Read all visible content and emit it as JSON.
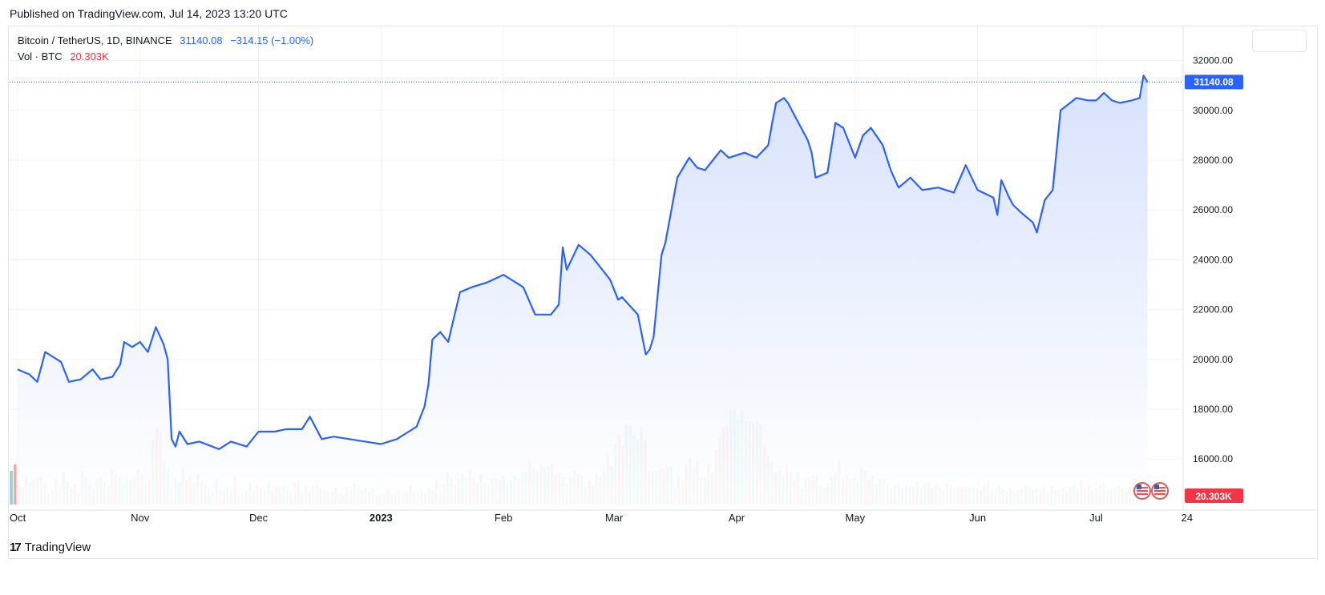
{
  "header": {
    "published": "Published on TradingView.com, Jul 14, 2023 13:20 UTC"
  },
  "legend": {
    "symbol": "Bitcoin / TetherUS, 1D, BINANCE",
    "price": "31140.08",
    "change": "−314.15 (−1.00%)",
    "volume_label": "Vol · BTC",
    "volume_value": "20.303K"
  },
  "footer": {
    "brand": "TradingView",
    "logo": "17"
  },
  "colors": {
    "line": "#2962ff",
    "area_top": "#d6e0fd",
    "area_bottom": "#ffffff",
    "vol_up": "#8fd3c8",
    "vol_down": "#f4a5a5",
    "price_tag": "#2962ff",
    "volume_tag": "#f23645",
    "grid": "#f0f3fa"
  },
  "icons": [
    "us-flag-event-icon",
    "us-flag-event-icon",
    "settings-box",
    "tradingview-logo-icon"
  ],
  "chart_data": {
    "type": "area",
    "title": "Bitcoin / TetherUS, 1D, BINANCE",
    "x_tick_labels": [
      "Oct",
      "Nov",
      "Dec",
      "2023",
      "Feb",
      "Mar",
      "Apr",
      "May",
      "Jun",
      "Jul",
      "24"
    ],
    "y_tick_labels": [
      "32000.00",
      "30000.00",
      "28000.00",
      "26000.00",
      "24000.00",
      "22000.00",
      "20000.00",
      "18000.00",
      "16000.00"
    ],
    "ylim": [
      14200,
      33400
    ],
    "last_price_label": "31140.08",
    "last_volume_label": "20.303K",
    "grid": true,
    "series": [
      {
        "name": "Bitcoin / TetherUS",
        "x": [
          "2022-10-01",
          "2022-10-04",
          "2022-10-06",
          "2022-10-08",
          "2022-10-12",
          "2022-10-14",
          "2022-10-17",
          "2022-10-20",
          "2022-10-22",
          "2022-10-25",
          "2022-10-27",
          "2022-10-28",
          "2022-10-30",
          "2022-11-01",
          "2022-11-03",
          "2022-11-05",
          "2022-11-07",
          "2022-11-08",
          "2022-11-09",
          "2022-11-10",
          "2022-11-11",
          "2022-11-13",
          "2022-11-16",
          "2022-11-21",
          "2022-11-24",
          "2022-11-28",
          "2022-12-01",
          "2022-12-05",
          "2022-12-08",
          "2022-12-12",
          "2022-12-14",
          "2022-12-17",
          "2022-12-20",
          "2022-12-24",
          "2022-12-28",
          "2023-01-01",
          "2023-01-05",
          "2023-01-08",
          "2023-01-10",
          "2023-01-12",
          "2023-01-13",
          "2023-01-14",
          "2023-01-16",
          "2023-01-18",
          "2023-01-21",
          "2023-01-24",
          "2023-01-28",
          "2023-02-01",
          "2023-02-03",
          "2023-02-06",
          "2023-02-09",
          "2023-02-13",
          "2023-02-15",
          "2023-02-16",
          "2023-02-17",
          "2023-02-20",
          "2023-02-23",
          "2023-02-26",
          "2023-02-28",
          "2023-03-02",
          "2023-03-03",
          "2023-03-07",
          "2023-03-09",
          "2023-03-10",
          "2023-03-11",
          "2023-03-13",
          "2023-03-14",
          "2023-03-17",
          "2023-03-20",
          "2023-03-22",
          "2023-03-24",
          "2023-03-28",
          "2023-03-30",
          "2023-04-03",
          "2023-04-06",
          "2023-04-09",
          "2023-04-10",
          "2023-04-11",
          "2023-04-13",
          "2023-04-14",
          "2023-04-17",
          "2023-04-19",
          "2023-04-20",
          "2023-04-21",
          "2023-04-24",
          "2023-04-26",
          "2023-04-28",
          "2023-05-01",
          "2023-05-03",
          "2023-05-05",
          "2023-05-08",
          "2023-05-10",
          "2023-05-12",
          "2023-05-15",
          "2023-05-18",
          "2023-05-22",
          "2023-05-26",
          "2023-05-29",
          "2023-06-01",
          "2023-06-05",
          "2023-06-06",
          "2023-06-07",
          "2023-06-09",
          "2023-06-10",
          "2023-06-12",
          "2023-06-15",
          "2023-06-16",
          "2023-06-18",
          "2023-06-20",
          "2023-06-21",
          "2023-06-22",
          "2023-06-26",
          "2023-06-29",
          "2023-07-01",
          "2023-07-03",
          "2023-07-05",
          "2023-07-07",
          "2023-07-10",
          "2023-07-12",
          "2023-07-13",
          "2023-07-14"
        ],
        "y": [
          19600,
          19400,
          19100,
          20300,
          19900,
          19100,
          19200,
          19600,
          19200,
          19300,
          19800,
          20700,
          20500,
          20700,
          20300,
          21300,
          20600,
          20000,
          16800,
          16500,
          17100,
          16600,
          16700,
          16400,
          16700,
          16500,
          17100,
          17100,
          17200,
          17200,
          17700,
          16800,
          16900,
          16800,
          16700,
          16600,
          16800,
          17100,
          17300,
          18100,
          19000,
          20800,
          21100,
          20700,
          22700,
          22900,
          23100,
          23400,
          23200,
          22900,
          21800,
          21800,
          22200,
          24500,
          23600,
          24600,
          24200,
          23600,
          23200,
          22400,
          22500,
          21800,
          20200,
          20400,
          20900,
          24200,
          24700,
          27300,
          28100,
          27700,
          27600,
          28400,
          28100,
          28300,
          28100,
          28600,
          29500,
          30300,
          30500,
          30300,
          29400,
          28800,
          28300,
          27300,
          27500,
          29500,
          29300,
          28100,
          29000,
          29300,
          28600,
          27600,
          26900,
          27300,
          26800,
          26900,
          26700,
          27800,
          26800,
          26500,
          25800,
          27200,
          26500,
          26200,
          25900,
          25500,
          25100,
          26400,
          26800,
          28400,
          30000,
          30500,
          30400,
          30400,
          30700,
          30400,
          30300,
          30400,
          30500,
          31400,
          31140
        ]
      }
    ],
    "volume": {
      "ylim": [
        0,
        750000
      ],
      "values": [
        210000,
        250000,
        120000,
        110000,
        180000,
        140000,
        160000,
        170000,
        170000,
        130000,
        70000,
        90000,
        160000,
        110000,
        200000,
        140000,
        100000,
        130000,
        70000,
        210000,
        170000,
        120000,
        100000,
        160000,
        170000,
        140000,
        120000,
        220000,
        190000,
        170000,
        120000,
        160000,
        150000,
        170000,
        220000,
        190000,
        130000,
        150000,
        400000,
        480000,
        450000,
        270000,
        220000,
        100000,
        160000,
        140000,
        230000,
        150000,
        170000,
        140000,
        190000,
        140000,
        120000,
        110000,
        80000,
        160000,
        90000,
        80000,
        110000,
        90000,
        180000,
        60000,
        70000,
        80000,
        140000,
        90000,
        120000,
        110000,
        90000,
        140000,
        90000,
        110000,
        110000,
        120000,
        90000,
        70000,
        140000,
        150000,
        70000,
        120000,
        80000,
        120000,
        120000,
        100000,
        90000,
        80000,
        80000,
        110000,
        70000,
        60000,
        110000,
        90000,
        130000,
        120000,
        90000,
        100000,
        80000,
        100000,
        60000,
        70000,
        70000,
        90000,
        60000,
        70000,
        90000,
        80000,
        80000,
        120000,
        80000,
        80000,
        100000,
        70000,
        100000,
        90000,
        150000,
        130000,
        130000,
        200000,
        160000,
        120000,
        160000,
        190000,
        170000,
        220000,
        160000,
        140000,
        190000,
        140000,
        130000,
        160000,
        160000,
        150000,
        180000,
        130000,
        150000,
        180000,
        160000,
        200000,
        200000,
        280000,
        230000,
        210000,
        260000,
        230000,
        240000,
        250000,
        180000,
        200000,
        170000,
        130000,
        170000,
        210000,
        190000,
        180000,
        110000,
        150000,
        120000,
        190000,
        170000,
        210000,
        320000,
        240000,
        380000,
        440000,
        370000,
        500000,
        490000,
        430000,
        410000,
        480000,
        410000,
        210000,
        200000,
        210000,
        220000,
        220000,
        240000,
        240000,
        110000,
        180000,
        150000,
        250000,
        290000,
        220000,
        270000,
        170000,
        170000,
        250000,
        200000,
        340000,
        420000,
        480000,
        490000,
        590000,
        590000,
        520000,
        590000,
        520000,
        520000,
        510000,
        520000,
        500000,
        370000,
        310000,
        270000,
        200000,
        210000,
        180000,
        240000,
        200000,
        150000,
        200000,
        100000,
        160000,
        170000,
        180000,
        180000,
        120000,
        100000,
        130000,
        170000,
        200000,
        280000,
        170000,
        180000,
        160000,
        170000,
        140000,
        230000,
        210000,
        160000,
        180000,
        130000,
        160000,
        160000,
        130000,
        100000,
        120000,
        130000,
        100000,
        120000,
        110000,
        110000,
        140000,
        110000,
        130000,
        140000,
        100000,
        120000,
        110000,
        90000,
        130000,
        120000,
        100000,
        110000,
        100000,
        110000,
        110000,
        100000,
        100000,
        90000,
        120000,
        130000,
        90000,
        100000,
        120000,
        90000,
        80000,
        100000,
        70000,
        90000,
        100000,
        120000,
        110000,
        90000,
        100000,
        100000,
        110000,
        80000,
        120000,
        90000,
        90000,
        100000,
        80000,
        110000,
        120000,
        90000,
        150000,
        100000,
        120000,
        90000,
        100000,
        120000,
        130000,
        90000,
        100000,
        110000,
        120000,
        100000,
        80000,
        110000,
        120000,
        100000,
        90000
      ],
      "up": [
        1,
        0,
        0,
        1,
        1,
        1,
        0,
        1,
        0,
        1,
        1,
        0,
        1,
        0,
        1,
        1,
        0,
        0,
        1,
        1,
        1,
        0,
        1,
        1,
        0,
        1,
        1,
        0,
        0,
        1,
        1,
        1,
        0,
        1,
        0,
        0,
        1,
        0,
        1,
        0,
        0,
        1,
        1,
        0,
        1,
        1,
        1,
        0,
        0,
        1,
        0,
        1,
        0,
        1,
        1,
        1,
        0,
        1,
        1,
        0,
        0,
        1,
        1,
        0,
        1,
        1,
        0,
        1,
        0,
        1,
        0,
        0,
        1,
        1,
        0,
        1,
        0,
        0,
        1,
        1,
        0,
        1,
        0,
        0,
        1,
        0,
        1,
        1,
        0,
        1,
        0,
        1,
        0,
        1,
        1,
        0,
        1,
        1,
        0,
        0,
        1,
        0,
        1,
        0,
        1,
        1,
        0,
        0,
        1,
        0,
        1,
        0,
        1,
        0,
        0,
        1,
        0,
        1,
        1,
        0,
        1,
        1,
        1,
        0,
        1,
        0,
        1,
        1,
        0,
        1,
        0,
        1,
        1,
        1,
        1,
        1,
        0,
        1,
        1,
        0,
        1,
        1,
        0,
        1,
        1,
        0,
        0,
        1,
        0,
        1,
        0,
        1,
        0,
        1,
        1,
        0,
        0,
        1,
        0,
        0,
        1,
        0,
        1,
        0,
        0,
        1,
        1,
        1,
        1,
        1,
        0,
        1,
        0,
        1,
        1,
        0,
        1,
        1,
        0,
        1,
        0,
        0,
        1,
        0,
        0,
        1,
        1,
        1,
        0,
        0,
        1,
        0,
        0,
        1,
        1,
        1,
        1,
        1,
        0,
        1,
        0,
        1,
        0,
        1,
        1,
        0,
        1,
        1,
        0,
        1,
        0,
        0,
        1,
        1,
        0,
        0,
        0,
        1,
        1,
        0,
        1,
        1,
        0,
        1,
        0,
        1,
        0,
        1,
        1,
        0,
        0,
        1,
        0,
        1,
        1,
        0,
        1,
        0,
        1,
        0,
        1,
        1,
        0,
        0,
        1,
        1,
        0,
        0,
        1,
        0,
        1,
        0,
        1,
        1,
        0,
        0,
        1,
        1,
        0,
        1,
        0,
        1,
        0,
        1,
        1,
        0,
        0,
        1,
        0,
        1,
        1,
        0,
        1,
        0,
        1,
        1,
        0,
        0,
        1,
        0,
        1,
        1,
        0,
        1,
        0,
        1,
        1,
        0,
        1,
        0,
        0,
        1,
        1,
        0,
        1,
        0,
        1,
        1,
        0,
        1,
        0,
        1,
        0,
        1,
        1,
        0,
        1,
        1,
        0,
        1,
        0,
        1,
        1,
        0,
        1,
        1,
        0,
        1,
        0,
        1,
        1,
        0
      ]
    }
  }
}
